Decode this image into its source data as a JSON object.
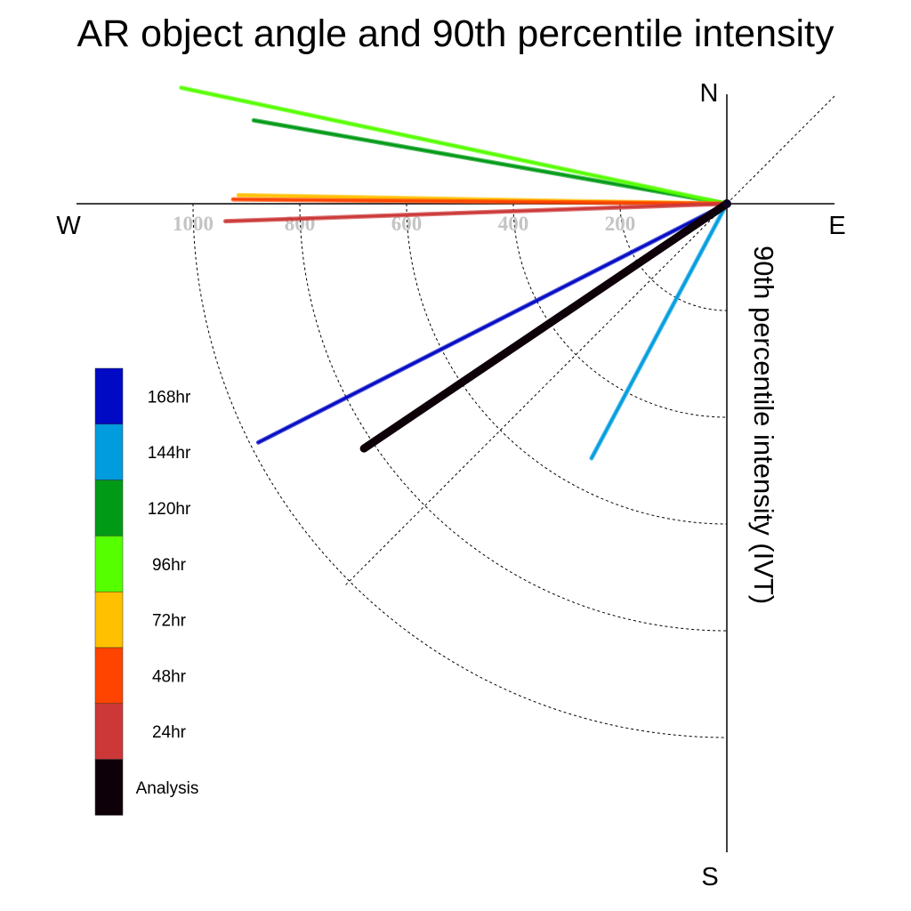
{
  "title": "AR object angle and 90th percentile intensity",
  "chart_data": {
    "type": "line",
    "title": "AR object angle and 90th percentile intensity",
    "ylabel": "90th percentile intensity (IVT)",
    "compass": {
      "n": "N",
      "e": "E",
      "s": "S",
      "w": "W"
    },
    "radial_ticks": [
      200,
      400,
      600,
      800,
      1000
    ],
    "radial_max": 1200,
    "grid": true,
    "legend_placement": "left",
    "series": [
      {
        "name": "120hr",
        "color": "#009a16",
        "intensity": 900,
        "angle_deg": 280
      },
      {
        "name": "96hr",
        "color": "#55ff00",
        "intensity": 1045,
        "angle_deg": 282
      },
      {
        "name": "72hr",
        "color": "#ffc000",
        "intensity": 915,
        "angle_deg": 271
      },
      {
        "name": "48hr",
        "color": "#ff4400",
        "intensity": 925,
        "angle_deg": 270.5
      },
      {
        "name": "24hr",
        "color": "#cc3838",
        "intensity": 940,
        "angle_deg": 268
      },
      {
        "name": "168hr",
        "color": "#0009c4",
        "intensity": 985,
        "angle_deg": 243
      },
      {
        "name": "144hr",
        "color": "#009cde",
        "intensity": 540,
        "angle_deg": 208
      },
      {
        "name": "Analysis",
        "color": "#0d0008",
        "intensity": 820,
        "angle_deg": 236
      }
    ],
    "legend": [
      {
        "label": "168hr",
        "color": "#0009c4"
      },
      {
        "label": "144hr",
        "color": "#009cde"
      },
      {
        "label": "120hr",
        "color": "#009a16"
      },
      {
        "label": "96hr",
        "color": "#55ff00"
      },
      {
        "label": "72hr",
        "color": "#ffc000"
      },
      {
        "label": "48hr",
        "color": "#ff4400"
      },
      {
        "label": "24hr",
        "color": "#cc3838"
      },
      {
        "label": "Analysis",
        "color": "#0d0008"
      }
    ]
  }
}
